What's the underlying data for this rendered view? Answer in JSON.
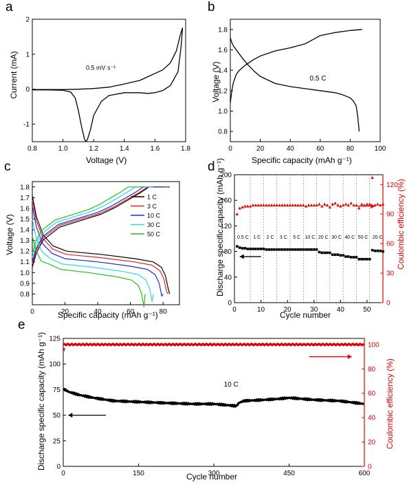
{
  "panels": {
    "a": "a",
    "b": "b",
    "c": "c",
    "d": "d",
    "e": "e"
  },
  "chart_data": [
    {
      "id": "a",
      "type": "line",
      "xlabel": "Voltage (V)",
      "ylabel": "Current (mA)",
      "xlim": [
        0.8,
        1.8
      ],
      "ylim": [
        -1.5,
        2
      ],
      "xticks": [
        0.8,
        1.0,
        1.2,
        1.4,
        1.6,
        1.8
      ],
      "yticks": [
        -1,
        0,
        1,
        2
      ],
      "annotations": [
        {
          "text": "0.5 mV s⁻¹",
          "x": 1.15,
          "y": 0.55
        }
      ],
      "series": [
        {
          "color": "#000000",
          "x": [
            0.8,
            0.9,
            1.0,
            1.05,
            1.08,
            1.1,
            1.12,
            1.14,
            1.15,
            1.16,
            1.18,
            1.2,
            1.25,
            1.3,
            1.4,
            1.5,
            1.55,
            1.6,
            1.65,
            1.7,
            1.75,
            1.77,
            1.78,
            1.765,
            1.74,
            1.7,
            1.65,
            1.6,
            1.55,
            1.5,
            1.45,
            1.4,
            1.3,
            1.2,
            1.1,
            1.0,
            0.9,
            0.8
          ],
          "y": [
            -0.02,
            -0.02,
            -0.03,
            -0.08,
            -0.25,
            -0.6,
            -1.05,
            -1.42,
            -1.5,
            -1.43,
            -1.15,
            -0.75,
            -0.35,
            -0.18,
            -0.1,
            -0.1,
            -0.12,
            -0.1,
            -0.04,
            0.1,
            0.5,
            1.2,
            1.75,
            1.55,
            1.1,
            0.75,
            0.55,
            0.45,
            0.35,
            0.25,
            0.2,
            0.15,
            0.06,
            0.02,
            0.0,
            -0.01,
            -0.01,
            -0.01
          ]
        }
      ]
    },
    {
      "id": "b",
      "type": "line",
      "xlabel": "Specific capacity (mAh g⁻¹)",
      "ylabel": "Voltage (V)",
      "xlim": [
        0,
        100
      ],
      "ylim": [
        0.7,
        1.9
      ],
      "xticks": [
        0,
        20,
        40,
        60,
        80,
        100
      ],
      "yticks": [
        0.8,
        1.0,
        1.2,
        1.4,
        1.6,
        1.8
      ],
      "annotations": [
        {
          "text": "0.5 C",
          "x": 53,
          "y": 1.3
        }
      ],
      "series": [
        {
          "name": "charge",
          "color": "#000000",
          "x": [
            0,
            1,
            2,
            4,
            6,
            10,
            15,
            20,
            30,
            40,
            50,
            55,
            60,
            70,
            80,
            88
          ],
          "y": [
            1.08,
            1.2,
            1.28,
            1.36,
            1.4,
            1.45,
            1.5,
            1.54,
            1.59,
            1.62,
            1.66,
            1.7,
            1.74,
            1.77,
            1.79,
            1.8
          ]
        },
        {
          "name": "discharge",
          "color": "#000000",
          "x": [
            0,
            1,
            2,
            4,
            8,
            12,
            16,
            20,
            30,
            40,
            50,
            60,
            70,
            75,
            80,
            82,
            84,
            85,
            86
          ],
          "y": [
            1.72,
            1.67,
            1.64,
            1.6,
            1.52,
            1.45,
            1.39,
            1.34,
            1.27,
            1.24,
            1.22,
            1.2,
            1.18,
            1.16,
            1.13,
            1.1,
            1.05,
            0.95,
            0.8
          ]
        }
      ]
    },
    {
      "id": "c",
      "type": "line",
      "xlabel": "Specific capacity (mAh g⁻¹)",
      "ylabel": "Voltage (V)",
      "xlim": [
        0,
        90
      ],
      "ylim": [
        0.7,
        1.85
      ],
      "xticks": [
        0,
        20,
        40,
        60,
        80
      ],
      "yticks": [
        0.8,
        0.9,
        1.0,
        1.1,
        1.2,
        1.3,
        1.4,
        1.5,
        1.6,
        1.7,
        1.8
      ],
      "legend": "top-right",
      "series": [
        {
          "name": "1 C",
          "color": "#000000",
          "cap": 84,
          "charge_start": 1.05,
          "dis_top": 1.72,
          "plateau": 1.15
        },
        {
          "name": "3 C",
          "color": "#e0241c",
          "cap": 83,
          "charge_start": 1.08,
          "dis_top": 1.68,
          "plateau": 1.12
        },
        {
          "name": "10 C",
          "color": "#1e2ae0",
          "cap": 80,
          "charge_start": 1.1,
          "dis_top": 1.62,
          "plateau": 1.08
        },
        {
          "name": "30 C",
          "color": "#2fd6e6",
          "cap": 74,
          "charge_start": 1.14,
          "dis_top": 1.5,
          "plateau": 1.03
        },
        {
          "name": "50 C",
          "color": "#22c41c",
          "cap": 69,
          "charge_start": 1.18,
          "dis_top": 1.34,
          "plateau": 0.98
        }
      ]
    },
    {
      "id": "d",
      "type": "scatter",
      "xlabel": "Cycle number",
      "ylabel": "Discharge specific capacity (mAh g⁻¹)",
      "y2label": "Coulombic efficiency (%)",
      "xlim": [
        0,
        56
      ],
      "ylim": [
        0,
        200
      ],
      "y2lim": [
        0,
        130
      ],
      "xticks": [
        0,
        10,
        20,
        30,
        40,
        50
      ],
      "yticks": [
        0,
        40,
        80,
        120,
        160,
        200
      ],
      "y2ticks": [
        0,
        30,
        60,
        90,
        120
      ],
      "dividers": [
        6,
        11,
        16,
        21,
        26,
        31,
        36,
        41,
        46,
        51
      ],
      "rate_labels": [
        {
          "text": "0.5 C",
          "x": 3.2
        },
        {
          "text": "1 C",
          "x": 8.5
        },
        {
          "text": "2 C",
          "x": 13.5
        },
        {
          "text": "3 C",
          "x": 18.5
        },
        {
          "text": "5 C",
          "x": 23.5
        },
        {
          "text": "10 C",
          "x": 28.5
        },
        {
          "text": "20 C",
          "x": 33.5
        },
        {
          "text": "30 C",
          "x": 38.5
        },
        {
          "text": "40 C",
          "x": 43.5
        },
        {
          "text": "50 C",
          "x": 48.5
        },
        {
          "text": "20 C",
          "x": 54
        }
      ],
      "capacity": [
        88,
        86,
        85,
        85,
        84,
        84,
        84,
        84,
        84,
        84,
        84,
        83,
        83,
        83,
        83,
        83,
        83,
        83,
        83,
        83,
        83,
        83,
        83,
        83,
        83,
        83,
        83,
        83,
        83,
        83,
        83,
        79,
        78,
        78,
        78,
        78,
        75,
        75,
        75,
        74,
        74,
        72,
        72,
        71,
        71,
        71,
        68,
        68,
        68,
        68,
        68,
        82,
        81,
        81,
        81,
        80
      ],
      "efficiency": [
        90,
        96,
        97,
        98,
        98,
        98,
        99,
        99,
        99,
        99,
        99,
        99,
        99,
        99,
        99,
        99,
        99,
        99,
        99,
        99,
        99,
        99,
        99,
        99,
        99,
        99,
        98,
        99,
        99,
        99,
        99,
        100,
        98,
        100,
        99,
        97,
        100,
        101,
        99,
        98,
        99,
        100,
        99,
        101,
        99,
        99,
        96,
        100,
        99,
        100,
        100,
        127,
        99,
        100,
        99,
        100
      ],
      "arrows": [
        {
          "direction": "left",
          "color": "#000000"
        },
        {
          "direction": "right",
          "color": "#e00000"
        }
      ]
    },
    {
      "id": "e",
      "type": "scatter",
      "xlabel": "Cycle number",
      "ylabel": "Discharge specific capacity (mAh g⁻¹)",
      "y2label": "Coulombic efficiency (%)",
      "xlim": [
        0,
        600
      ],
      "ylim": [
        0,
        125
      ],
      "y2lim": [
        0,
        105
      ],
      "xticks": [
        0,
        150,
        300,
        450,
        600
      ],
      "yticks": [
        0,
        25,
        50,
        75,
        100,
        125
      ],
      "y2ticks": [
        0,
        20,
        40,
        60,
        80,
        100
      ],
      "annotations": [
        {
          "text": "10 C",
          "x": 320,
          "y": 78
        }
      ],
      "capacity_trend": {
        "x": [
          0,
          10,
          30,
          60,
          100,
          150,
          200,
          260,
          300,
          345,
          350,
          360,
          400,
          430,
          450,
          500,
          550,
          600
        ],
        "y": [
          76,
          73,
          70,
          67,
          64,
          63,
          62,
          61,
          61,
          59,
          62,
          64,
          65,
          66,
          67,
          65,
          64,
          61
        ]
      },
      "efficiency_level": 100,
      "arrows": [
        {
          "direction": "left",
          "color": "#000000"
        },
        {
          "direction": "right",
          "color": "#e00000"
        }
      ]
    }
  ]
}
